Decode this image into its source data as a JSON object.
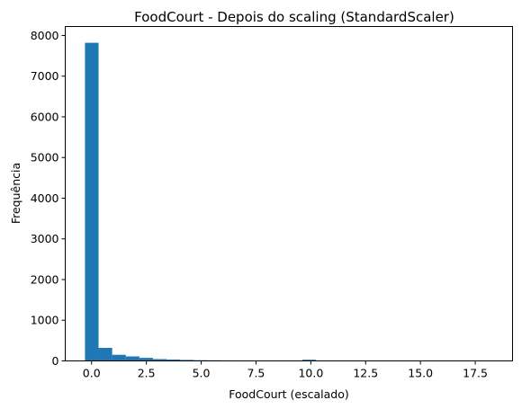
{
  "chart_data": {
    "type": "bar",
    "title": "FoodCourt - Depois do scaling (StandardScaler)",
    "xlabel": "FoodCourt (escalado)",
    "ylabel": "Frequência",
    "xlim": [
      -1.2,
      19.2
    ],
    "ylim": [
      0,
      8220
    ],
    "xticks": [
      0,
      2.5,
      5,
      7.5,
      10,
      12.5,
      15,
      17.5
    ],
    "xtick_labels": [
      "0.0",
      "2.5",
      "5.0",
      "7.5",
      "10.0",
      "12.5",
      "15.0",
      "17.5"
    ],
    "yticks": [
      0,
      1000,
      2000,
      3000,
      4000,
      5000,
      6000,
      7000,
      8000
    ],
    "ytick_labels": [
      "0",
      "1000",
      "2000",
      "3000",
      "4000",
      "5000",
      "6000",
      "7000",
      "8000"
    ],
    "bin_edges": [
      -0.3,
      0.32,
      0.94,
      1.56,
      2.18,
      2.8,
      3.42,
      4.04,
      4.66,
      5.28,
      5.9,
      6.52,
      7.14,
      7.76,
      8.38,
      9.0,
      9.62,
      10.24,
      10.86,
      11.48,
      12.1,
      12.72,
      13.34,
      13.96,
      14.58,
      15.2,
      15.82,
      16.44,
      17.06,
      17.68,
      18.3
    ],
    "counts": [
      7820,
      320,
      150,
      110,
      75,
      45,
      35,
      25,
      18,
      15,
      12,
      10,
      8,
      6,
      5,
      5,
      30,
      6,
      3,
      2,
      2,
      2,
      2,
      1,
      1,
      1,
      1,
      1,
      1,
      1
    ],
    "bar_color": "#1f77b4",
    "grid": false,
    "legend": "none"
  }
}
